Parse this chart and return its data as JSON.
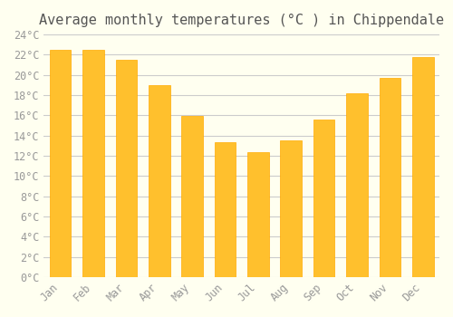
{
  "title": "Average monthly temperatures (°C ) in Chippendale",
  "months": [
    "Jan",
    "Feb",
    "Mar",
    "Apr",
    "May",
    "Jun",
    "Jul",
    "Aug",
    "Sep",
    "Oct",
    "Nov",
    "Dec"
  ],
  "values": [
    22.5,
    22.5,
    21.5,
    19.0,
    15.9,
    13.3,
    12.4,
    13.5,
    15.6,
    18.2,
    19.7,
    21.8
  ],
  "bar_color_top": "#FFC02D",
  "bar_color_bottom": "#FFAA00",
  "ylim": [
    0,
    24
  ],
  "yticks": [
    0,
    2,
    4,
    6,
    8,
    10,
    12,
    14,
    16,
    18,
    20,
    22,
    24
  ],
  "background_color": "#FFFFF0",
  "grid_color": "#CCCCCC",
  "title_fontsize": 11,
  "tick_fontsize": 8.5,
  "title_font": "monospace",
  "tick_font": "monospace"
}
